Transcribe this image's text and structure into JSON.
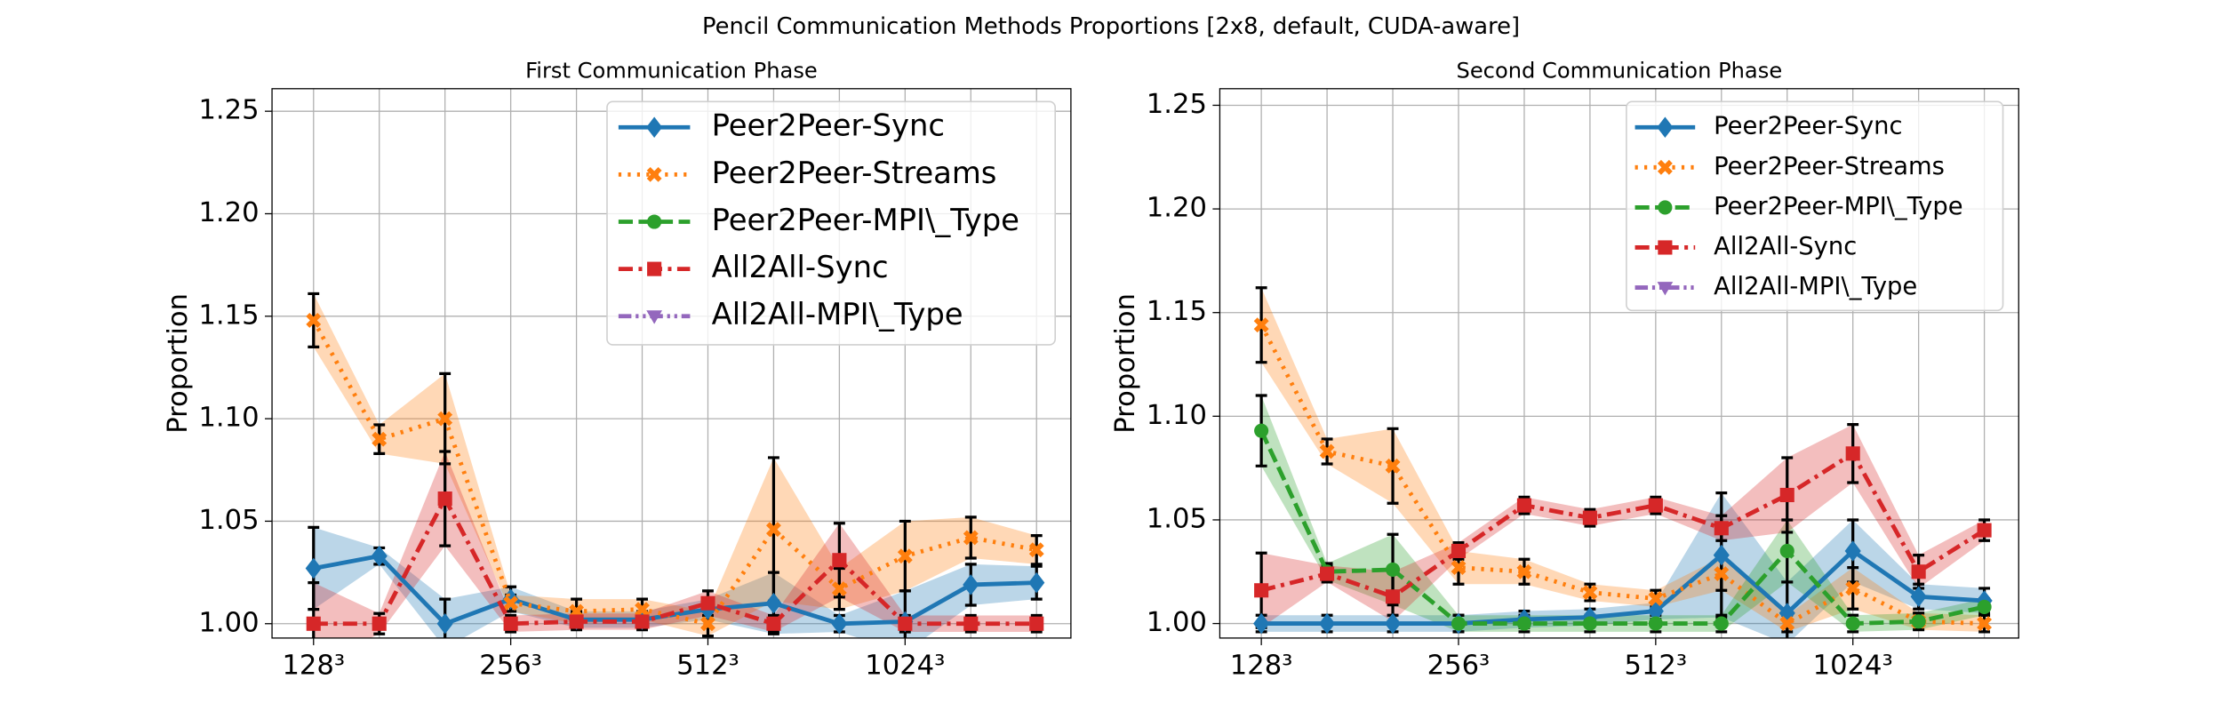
{
  "title": "Pencil Communication Methods Proportions [2x8, default, CUDA-aware]",
  "chart_data": [
    {
      "type": "line",
      "title": "First Communication Phase",
      "ylabel": "Proportion",
      "categories": [
        "128³",
        null,
        null,
        "256³",
        null,
        null,
        "512³",
        null,
        null,
        "1024³",
        null,
        null
      ],
      "ylim": [
        0.993,
        1.261
      ],
      "yticks": [
        {
          "value": 1,
          "label": "1.00"
        },
        1.05,
        {
          "value": 1.1,
          "label": "1.10"
        },
        1.15,
        {
          "value": 1.2,
          "label": "1.20"
        },
        1.25
      ],
      "grid": true,
      "legend": "upper right",
      "series": [
        {
          "name": "Peer2Peer-Sync",
          "color": "#1f77b4",
          "marker": "diamond",
          "linestyle": "solid",
          "values": [
            1.027,
            1.033,
            1.0,
            1.012,
            1.002,
            1.002,
            1.007,
            1.01,
            1.0,
            1.001,
            1.019,
            1.02
          ],
          "errors": [
            0.02,
            0.004,
            0.012,
            0.006,
            0.004,
            0.004,
            0.005,
            0.015,
            0.004,
            0.015,
            0.01,
            0.008
          ]
        },
        {
          "name": "Peer2Peer-Streams",
          "color": "#ff7f0e",
          "marker": "x",
          "linestyle": "dotted",
          "values": [
            1.148,
            1.09,
            1.1,
            1.01,
            1.006,
            1.007,
            1.0,
            1.046,
            1.017,
            1.033,
            1.042,
            1.036
          ],
          "errors": [
            0.013,
            0.007,
            0.022,
            0.004,
            0.006,
            0.005,
            0.006,
            0.035,
            0.01,
            0.017,
            0.01,
            0.007
          ]
        },
        {
          "name": "Peer2Peer-MPI\\_Type",
          "color": "#2ca02c",
          "marker": "circle",
          "linestyle": "dashed",
          "values": [
            null,
            null,
            null,
            null,
            null,
            null,
            null,
            null,
            null,
            null,
            null,
            null
          ],
          "errors": [
            null,
            null,
            null,
            null,
            null,
            null,
            null,
            null,
            null,
            null,
            null,
            null
          ]
        },
        {
          "name": "All2All-Sync",
          "color": "#d62728",
          "marker": "square",
          "linestyle": "dashdot",
          "values": [
            1.0,
            1.0,
            1.061,
            1.0,
            1.001,
            1.001,
            1.01,
            1.0,
            1.031,
            1.0,
            1.0,
            1.0
          ],
          "errors": [
            0.02,
            0.005,
            0.023,
            0.004,
            0.004,
            0.004,
            0.006,
            0.004,
            0.018,
            0.004,
            0.004,
            0.004
          ]
        },
        {
          "name": "All2All-MPI\\_Type",
          "color": "#9467bd",
          "marker": "triangle-down",
          "linestyle": "dashdotdot",
          "values": [
            null,
            null,
            null,
            null,
            null,
            null,
            null,
            null,
            null,
            null,
            null,
            null
          ],
          "errors": [
            null,
            null,
            null,
            null,
            null,
            null,
            null,
            null,
            null,
            null,
            null,
            null
          ]
        }
      ]
    },
    {
      "type": "line",
      "title": "Second Communication Phase",
      "ylabel": "Proportion",
      "categories": [
        "128³",
        null,
        null,
        "256³",
        null,
        null,
        "512³",
        null,
        null,
        "1024³",
        null,
        null
      ],
      "ylim": [
        0.993,
        1.258
      ],
      "yticks": [
        {
          "value": 1,
          "label": "1.00"
        },
        1.05,
        {
          "value": 1.1,
          "label": "1.10"
        },
        1.15,
        {
          "value": 1.2,
          "label": "1.20"
        },
        1.25
      ],
      "grid": true,
      "legend": "upper right",
      "series": [
        {
          "name": "Peer2Peer-Sync",
          "color": "#1f77b4",
          "marker": "diamond",
          "linestyle": "solid",
          "values": [
            1.0,
            1.0,
            1.0,
            1.0,
            1.002,
            1.003,
            1.006,
            1.033,
            1.005,
            1.035,
            1.013,
            1.011
          ],
          "errors": [
            0.004,
            0.004,
            0.004,
            0.004,
            0.004,
            0.004,
            0.004,
            0.03,
            0.015,
            0.015,
            0.006,
            0.006
          ]
        },
        {
          "name": "Peer2Peer-Streams",
          "color": "#ff7f0e",
          "marker": "x",
          "linestyle": "dotted",
          "values": [
            1.144,
            1.083,
            1.076,
            1.027,
            1.025,
            1.015,
            1.012,
            1.024,
            1.0,
            1.017,
            1.001,
            1.0
          ],
          "errors": [
            0.018,
            0.006,
            0.018,
            0.008,
            0.006,
            0.004,
            0.004,
            0.008,
            0.004,
            0.01,
            0.004,
            0.004
          ]
        },
        {
          "name": "Peer2Peer-MPI\\_Type",
          "color": "#2ca02c",
          "marker": "circle",
          "linestyle": "dashed",
          "values": [
            1.093,
            1.025,
            1.026,
            1.0,
            1.0,
            1.0,
            1.0,
            1.0,
            1.035,
            1.0,
            1.001,
            1.008
          ],
          "errors": [
            0.017,
            0.004,
            0.017,
            0.004,
            0.004,
            0.004,
            0.004,
            0.004,
            0.015,
            0.004,
            0.004,
            0.004
          ]
        },
        {
          "name": "All2All-Sync",
          "color": "#d62728",
          "marker": "square",
          "linestyle": "dashdot",
          "values": [
            1.016,
            1.024,
            1.013,
            1.035,
            1.057,
            1.051,
            1.057,
            1.046,
            1.062,
            1.082,
            1.025,
            1.045
          ],
          "errors": [
            0.018,
            0.004,
            0.012,
            0.004,
            0.004,
            0.004,
            0.004,
            0.006,
            0.018,
            0.014,
            0.008,
            0.005
          ]
        },
        {
          "name": "All2All-MPI\\_Type",
          "color": "#9467bd",
          "marker": "triangle-down",
          "linestyle": "dashdotdot",
          "values": [
            null,
            null,
            null,
            null,
            null,
            null,
            null,
            null,
            null,
            null,
            null,
            null
          ],
          "errors": [
            null,
            null,
            null,
            null,
            null,
            null,
            null,
            null,
            null,
            null,
            null,
            null
          ]
        }
      ]
    }
  ]
}
